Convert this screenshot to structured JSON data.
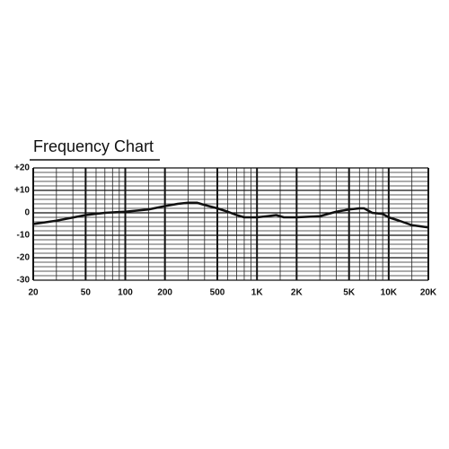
{
  "chart_data": {
    "type": "line",
    "title": "Frequency Chart",
    "x": [
      20,
      30,
      50,
      70,
      100,
      150,
      200,
      250,
      300,
      350,
      400,
      500,
      600,
      700,
      800,
      1000,
      1200,
      1400,
      1600,
      2000,
      3000,
      4000,
      5000,
      6000,
      6500,
      7500,
      9000,
      10000,
      12000,
      15000,
      20000
    ],
    "values": [
      -5,
      -3.5,
      -1,
      0,
      0.5,
      1.5,
      3,
      4,
      4.5,
      4.5,
      3.5,
      2,
      0.5,
      -1,
      -2,
      -2,
      -1.5,
      -1,
      -2,
      -2,
      -1.5,
      0.5,
      1.5,
      2,
      2,
      0,
      -0.5,
      -2,
      -3.5,
      -5.5,
      -6.5
    ],
    "color": "#111111",
    "log_x": true,
    "grid": true,
    "xlim": [
      20,
      20000
    ],
    "ylim": [
      -30,
      20
    ],
    "xticks": [
      20,
      50,
      100,
      200,
      500,
      {
        "value": 1000,
        "label": "1K"
      },
      {
        "value": 2000,
        "label": "2K"
      },
      {
        "value": 5000,
        "label": "5K"
      },
      {
        "value": 10000,
        "label": "10K"
      },
      {
        "value": 20000,
        "label": "20K"
      }
    ],
    "yticks": [
      {
        "value": 20,
        "label": "+20"
      },
      {
        "value": 10,
        "label": "+10"
      },
      0,
      -10,
      -20,
      -30
    ],
    "minor_xticks": [
      30,
      40,
      60,
      70,
      80,
      90,
      150,
      300,
      400,
      600,
      700,
      800,
      900,
      1500,
      3000,
      4000,
      6000,
      7000,
      8000,
      9000,
      15000
    ],
    "minor_yticks": [
      -28,
      -26,
      -24,
      -22,
      -18,
      -16,
      -14,
      -12,
      -8,
      -6,
      -4,
      -2,
      2,
      4,
      6,
      8,
      12,
      14,
      16,
      18
    ]
  }
}
